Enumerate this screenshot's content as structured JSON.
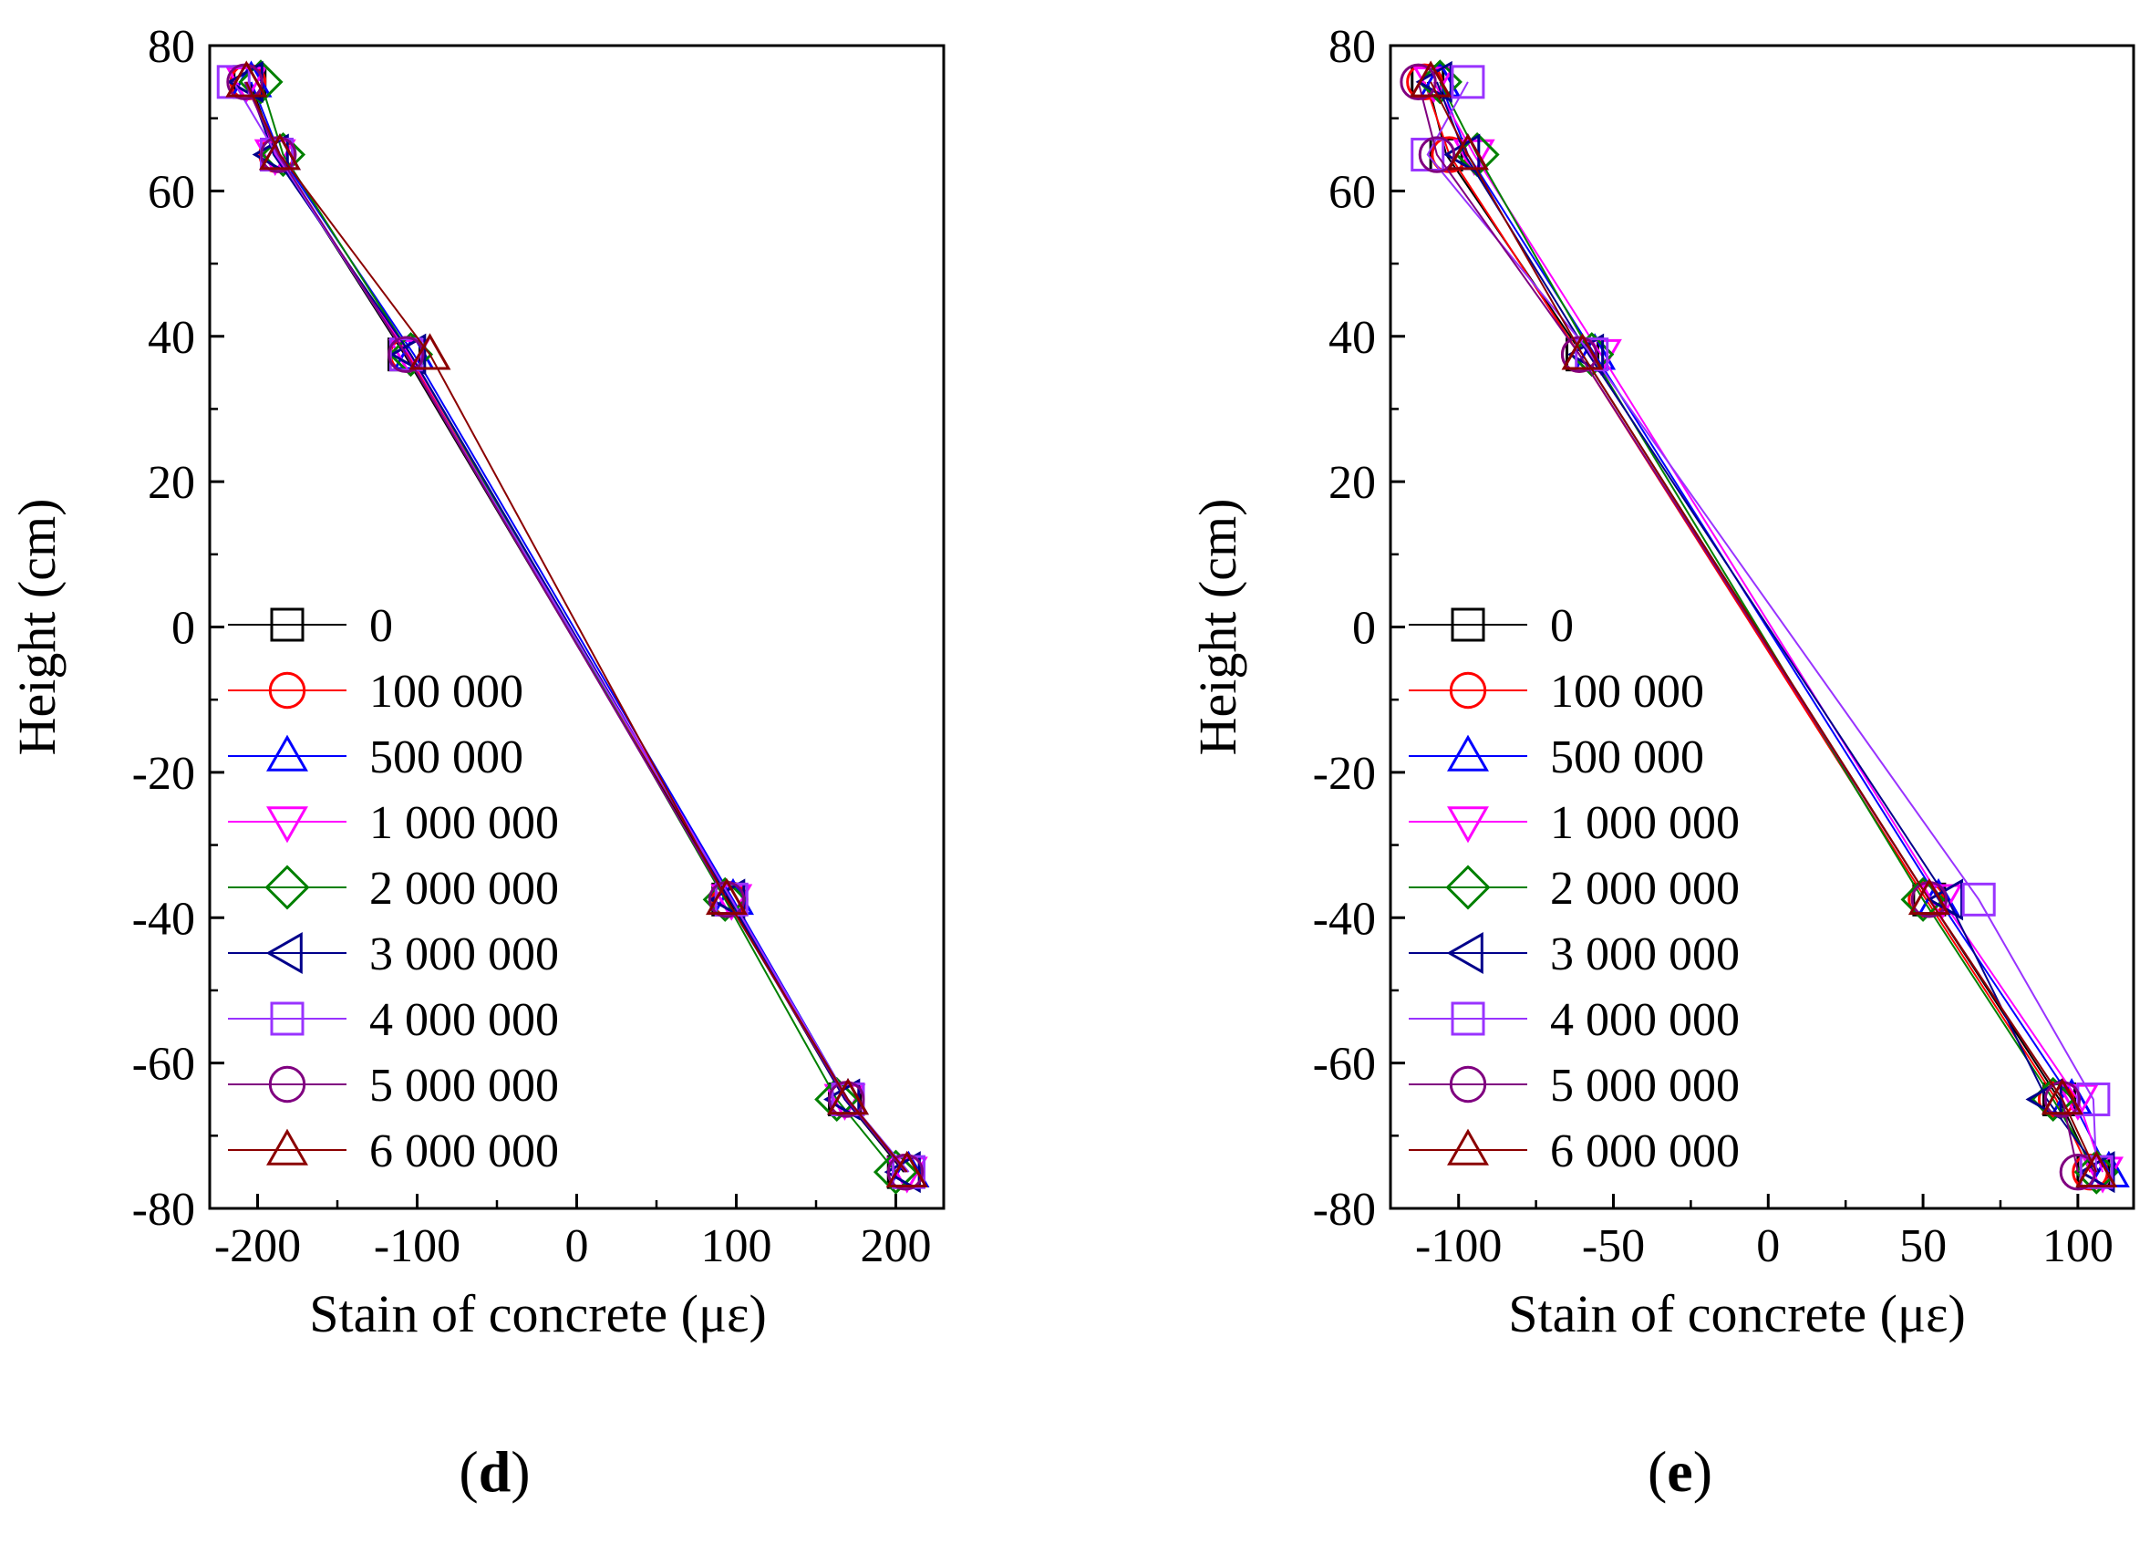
{
  "chart_data": [
    {
      "type": "line",
      "panel_label": "d",
      "xlabel": "Stain of concrete  (με)",
      "ylabel": "Height  (cm)",
      "xlim": [
        -230,
        230
      ],
      "ylim": [
        -80,
        80
      ],
      "xticks": [
        -200,
        -100,
        0,
        100,
        200
      ],
      "yticks": [
        -80,
        -60,
        -40,
        -20,
        0,
        20,
        40,
        60,
        80
      ],
      "legend_position": "left",
      "y": [
        75,
        65,
        37.5,
        -37.5,
        -65,
        -75
      ],
      "series": [
        {
          "name": "0",
          "color": "#000000",
          "marker": "square",
          "x": [
            -205,
            -188,
            -108,
            95,
            168,
            205
          ]
        },
        {
          "name": "100 000",
          "color": "#ff0000",
          "marker": "circle",
          "x": [
            -206,
            -188,
            -106,
            96,
            169,
            206
          ]
        },
        {
          "name": "500 000",
          "color": "#0000ff",
          "marker": "triangle-up",
          "x": [
            -204,
            -186,
            -102,
            98,
            170,
            208
          ]
        },
        {
          "name": "1 000 000",
          "color": "#ff00ff",
          "marker": "triangle-down",
          "x": [
            -207,
            -189,
            -105,
            97,
            168,
            207
          ]
        },
        {
          "name": "2 000 000",
          "color": "#008000",
          "marker": "diamond",
          "x": [
            -198,
            -184,
            -104,
            93,
            163,
            200
          ]
        },
        {
          "name": "3 000 000",
          "color": "#00008b",
          "marker": "triangle-left",
          "x": [
            -206,
            -190,
            -104,
            96,
            168,
            206
          ]
        },
        {
          "name": "4 000 000",
          "color": "#9933ff",
          "marker": "square",
          "x": [
            -215,
            -188,
            -107,
            97,
            170,
            208
          ]
        },
        {
          "name": "5 000 000",
          "color": "#800080",
          "marker": "circle",
          "x": [
            -208,
            -187,
            -107,
            94,
            169,
            206
          ]
        },
        {
          "name": "6 000 000",
          "color": "#8b0000",
          "marker": "triangle-up",
          "x": [
            -207,
            -186,
            -92,
            94,
            170,
            207
          ]
        }
      ]
    },
    {
      "type": "line",
      "panel_label": "e",
      "xlabel": "Stain of concrete  (με)",
      "ylabel": "Height  (cm)",
      "xlim": [
        -122,
        118
      ],
      "ylim": [
        -80,
        80
      ],
      "xticks": [
        -100,
        -50,
        0,
        50,
        100
      ],
      "yticks": [
        -80,
        -60,
        -40,
        -20,
        0,
        20,
        40,
        60,
        80
      ],
      "legend_position": "left",
      "y": [
        75,
        65,
        37.5,
        -37.5,
        -65,
        -75
      ],
      "series": [
        {
          "name": "0",
          "color": "#000000",
          "marker": "square",
          "x": [
            -110,
            -104,
            -60,
            52,
            94,
            105
          ]
        },
        {
          "name": "100 000",
          "color": "#ff0000",
          "marker": "circle",
          "x": [
            -111,
            -103,
            -61,
            51,
            93,
            104
          ]
        },
        {
          "name": "500 000",
          "color": "#0000ff",
          "marker": "triangle-up",
          "x": [
            -106,
            -97,
            -56,
            55,
            98,
            110
          ]
        },
        {
          "name": "1 000 000",
          "color": "#ff00ff",
          "marker": "triangle-down",
          "x": [
            -108,
            -95,
            -54,
            56,
            100,
            108
          ]
        },
        {
          "name": "2 000 000",
          "color": "#008000",
          "marker": "diamond",
          "x": [
            -106,
            -94,
            -57,
            50,
            92,
            106
          ]
        },
        {
          "name": "3 000 000",
          "color": "#00008b",
          "marker": "triangle-left",
          "x": [
            -107,
            -98,
            -58,
            58,
            90,
            107
          ]
        },
        {
          "name": "4 000 000",
          "color": "#9933ff",
          "marker": "square",
          "x": [
            -97,
            -110,
            -57,
            68,
            105,
            106
          ]
        },
        {
          "name": "5 000 000",
          "color": "#800080",
          "marker": "circle",
          "x": [
            -113,
            -107,
            -61,
            52,
            95,
            100
          ]
        },
        {
          "name": "6 000 000",
          "color": "#8b0000",
          "marker": "triangle-up",
          "x": [
            -109,
            -97,
            -60,
            52,
            95,
            106
          ]
        }
      ]
    }
  ]
}
